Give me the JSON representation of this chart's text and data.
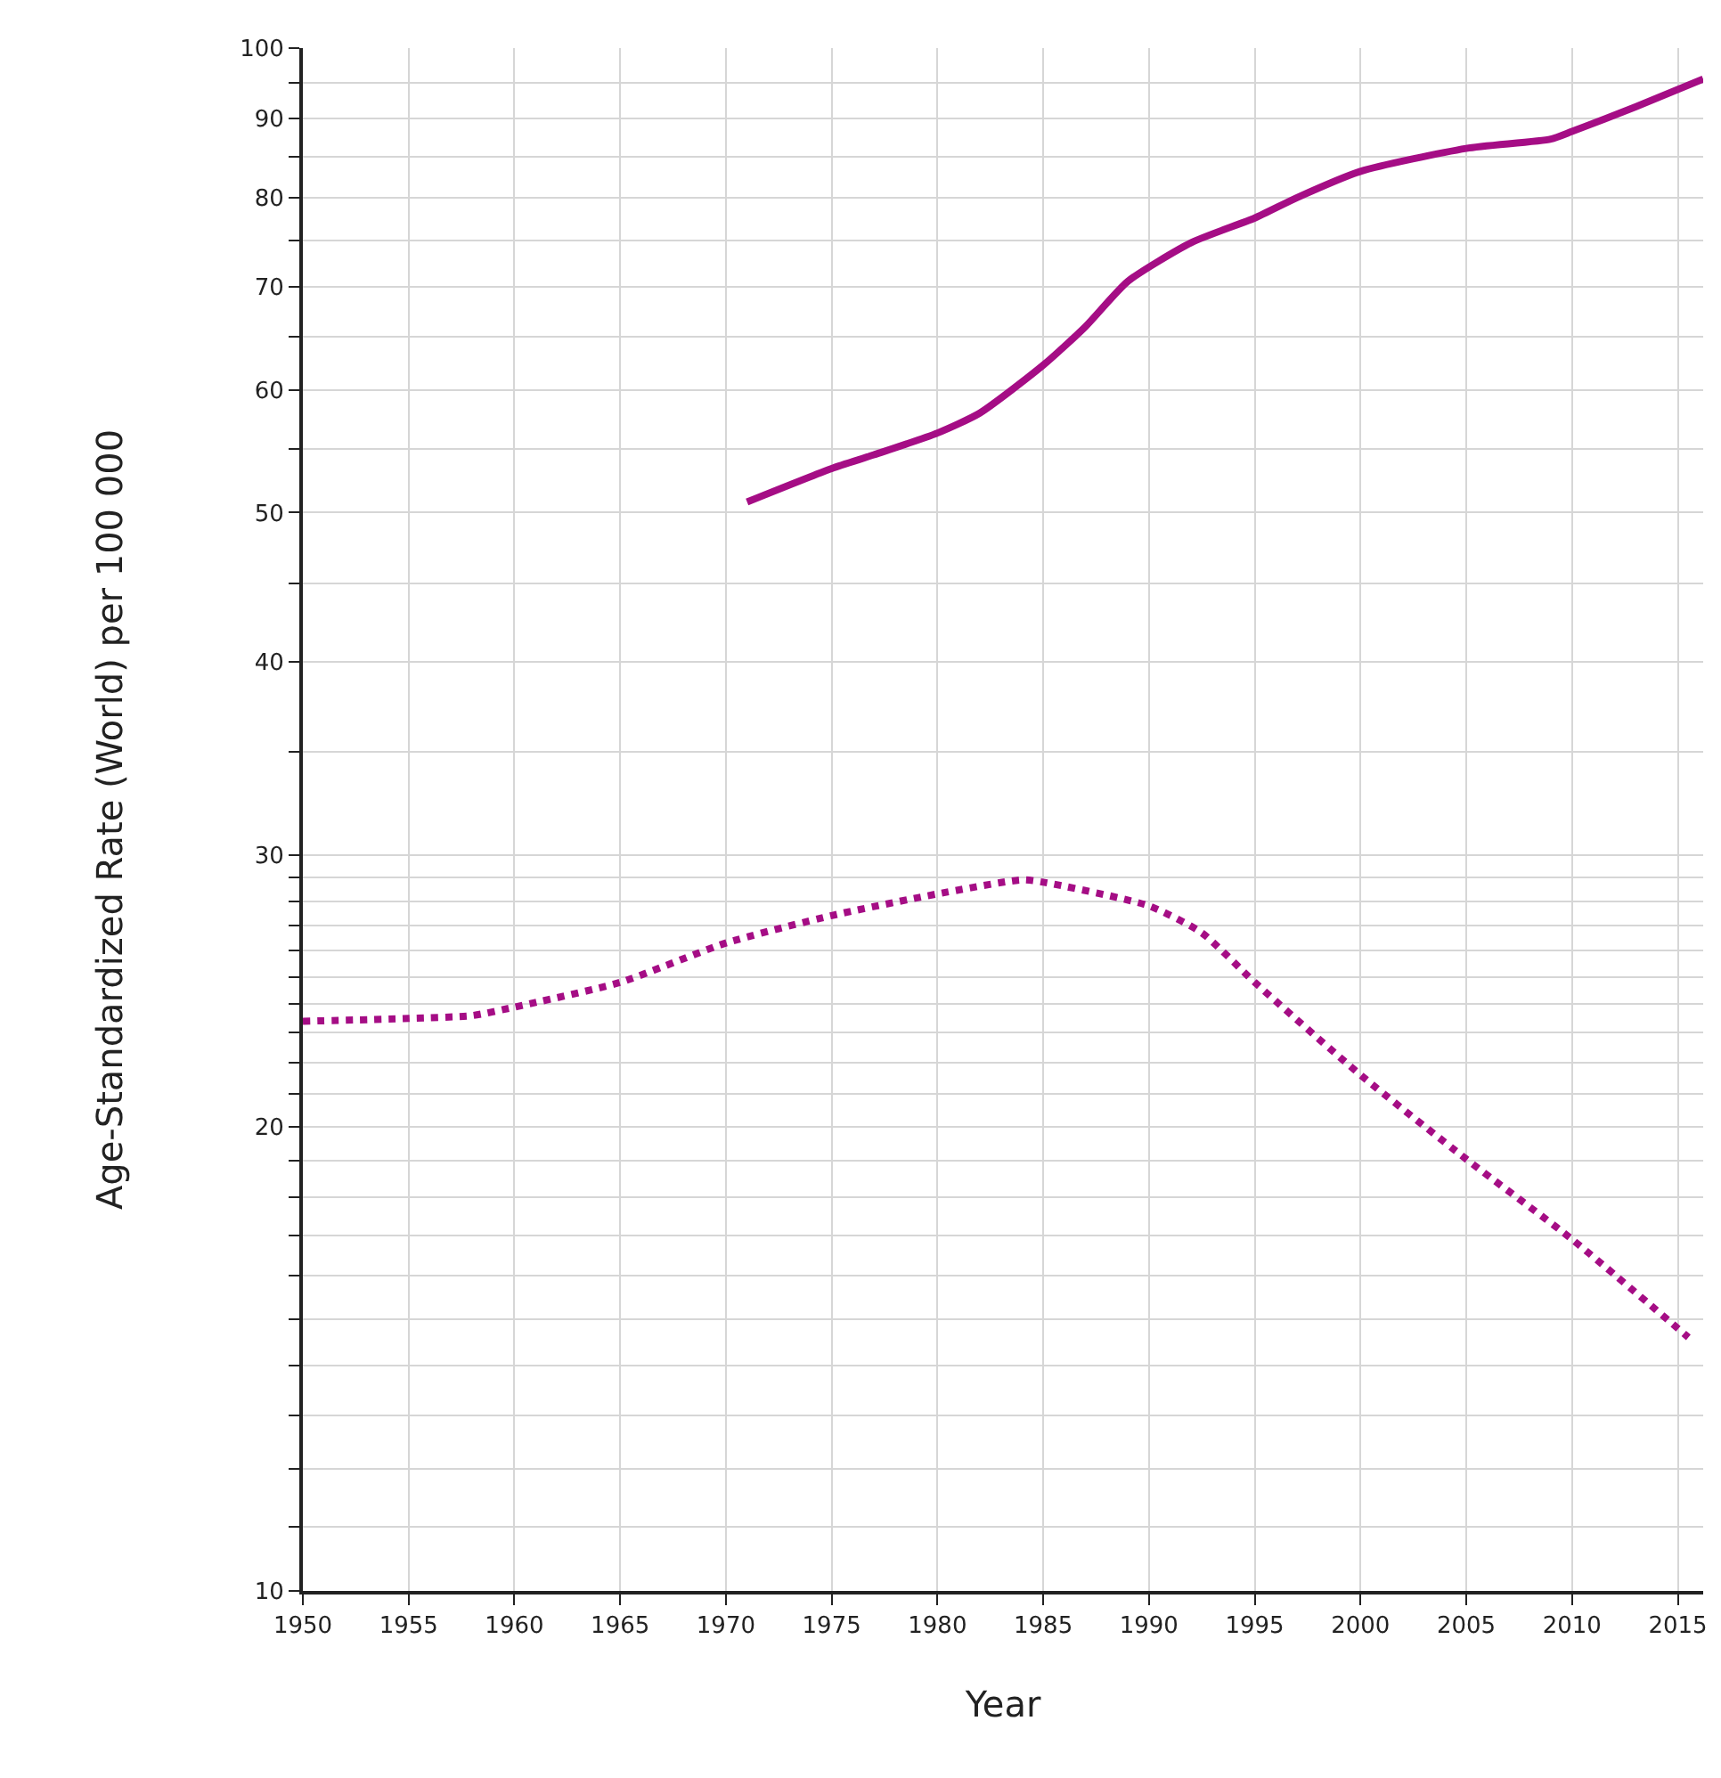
{
  "chart_data": {
    "type": "line",
    "xlabel": "Year",
    "ylabel": "Age-Standardized Rate (World) per 100 000",
    "log": "y",
    "grid": true,
    "xlim": [
      1950,
      2016.2
    ],
    "xticks": [
      1950,
      1955,
      1960,
      1965,
      1970,
      1975,
      1980,
      1985,
      1990,
      1995,
      2000,
      2005,
      2010,
      2015
    ],
    "ylim": [
      10,
      100
    ],
    "yticks": [
      10,
      {
        "value": 11,
        "label": null
      },
      {
        "value": 12,
        "label": null
      },
      {
        "value": 13,
        "label": null
      },
      {
        "value": 14,
        "label": null
      },
      {
        "value": 15,
        "label": null
      },
      {
        "value": 16,
        "label": null
      },
      {
        "value": 17,
        "label": null
      },
      {
        "value": 18,
        "label": null
      },
      {
        "value": 19,
        "label": null
      },
      20,
      {
        "value": 21,
        "label": null
      },
      {
        "value": 22,
        "label": null
      },
      {
        "value": 23,
        "label": null
      },
      {
        "value": 24,
        "label": null
      },
      {
        "value": 25,
        "label": null
      },
      {
        "value": 26,
        "label": null
      },
      {
        "value": 27,
        "label": null
      },
      {
        "value": 28,
        "label": null
      },
      {
        "value": 29,
        "label": null
      },
      30,
      {
        "value": 35,
        "label": null
      },
      40,
      {
        "value": 45,
        "label": null
      },
      50,
      {
        "value": 55,
        "label": null
      },
      60,
      {
        "value": 65,
        "label": null
      },
      70,
      {
        "value": 75,
        "label": null
      },
      80,
      {
        "value": 85,
        "label": null
      },
      90,
      {
        "value": 95,
        "label": null
      },
      100
    ],
    "series": [
      {
        "color": "#a50d85",
        "line_style": "solid",
        "x": [
          1971,
          1975,
          1977,
          1980,
          1982,
          1985,
          1987,
          1989,
          1992,
          1995,
          1997,
          2000,
          2005,
          2009,
          2010,
          2013,
          2016.2
        ],
        "values": [
          50.8,
          53.4,
          54.5,
          56.3,
          58,
          62.3,
          66,
          70.6,
          74.8,
          77.6,
          80,
          83.2,
          86.1,
          87.3,
          88.3,
          91.6,
          95.5
        ]
      },
      {
        "color": "#a50d85",
        "line_style": "dotted",
        "x": [
          1950,
          1955,
          1958,
          1960,
          1965,
          1970,
          1975,
          1980,
          1984,
          1985,
          1990,
          1992.5,
          1995,
          2000,
          2005,
          2010,
          2015.5
        ],
        "values": [
          23.4,
          23.5,
          23.6,
          23.9,
          24.8,
          26.3,
          27.4,
          28.3,
          28.9,
          28.8,
          27.8,
          26.7,
          24.8,
          21.6,
          19.05,
          16.9,
          14.6
        ]
      }
    ]
  }
}
